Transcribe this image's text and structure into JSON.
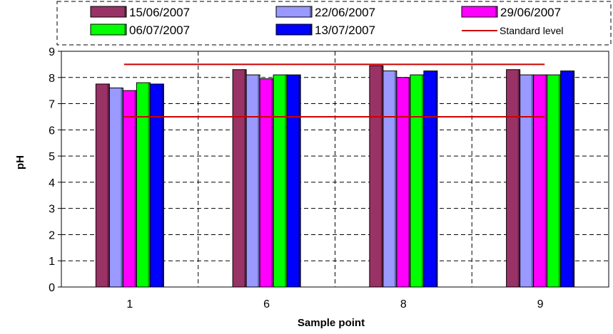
{
  "chart_data": {
    "type": "bar",
    "title": "",
    "xlabel": "Sample point",
    "ylabel": "pH",
    "categories": [
      "1",
      "6",
      "8",
      "9"
    ],
    "ylim": [
      0,
      9
    ],
    "yticks": [
      "0",
      "1",
      "2",
      "3",
      "4",
      "5",
      "6",
      "7",
      "8",
      "9"
    ],
    "grid": true,
    "legend_position": "top",
    "series": [
      {
        "name": "15/06/2007",
        "color": "#993366",
        "values": [
          7.75,
          8.3,
          8.45,
          8.3
        ]
      },
      {
        "name": "22/06/2007",
        "color": "#9999ff",
        "values": [
          7.6,
          8.1,
          8.25,
          8.1
        ]
      },
      {
        "name": "29/06/2007",
        "color": "#ff00ff",
        "values": [
          7.5,
          7.95,
          8.0,
          8.1
        ]
      },
      {
        "name": "06/07/2007",
        "color": "#00ff00",
        "values": [
          7.8,
          8.1,
          8.1,
          8.1
        ]
      },
      {
        "name": "13/07/2007",
        "color": "#0000ff",
        "values": [
          7.75,
          8.1,
          8.25,
          8.25
        ]
      }
    ],
    "standard": {
      "name": "Standard level",
      "color": "#cc0000",
      "levels": [
        6.5,
        8.5
      ]
    }
  }
}
